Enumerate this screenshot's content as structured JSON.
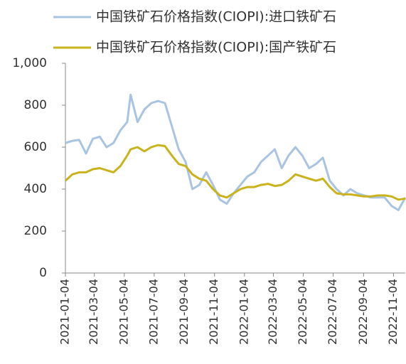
{
  "chart_data": {
    "type": "line",
    "x": [
      "2021-01-04",
      "2021-01-18",
      "2021-02-01",
      "2021-02-15",
      "2021-03-01",
      "2021-03-15",
      "2021-03-29",
      "2021-04-12",
      "2021-04-26",
      "2021-05-10",
      "2021-05-17",
      "2021-05-31",
      "2021-06-14",
      "2021-06-28",
      "2021-07-12",
      "2021-07-26",
      "2021-08-09",
      "2021-08-23",
      "2021-09-06",
      "2021-09-20",
      "2021-10-04",
      "2021-10-18",
      "2021-11-01",
      "2021-11-15",
      "2021-11-29",
      "2021-12-13",
      "2021-12-27",
      "2022-01-10",
      "2022-01-24",
      "2022-02-07",
      "2022-02-21",
      "2022-03-07",
      "2022-03-21",
      "2022-04-04",
      "2022-04-18",
      "2022-05-02",
      "2022-05-16",
      "2022-05-30",
      "2022-06-13",
      "2022-06-27",
      "2022-07-11",
      "2022-07-25",
      "2022-08-08",
      "2022-08-22",
      "2022-09-05",
      "2022-09-19",
      "2022-10-03",
      "2022-10-17",
      "2022-10-31",
      "2022-11-14",
      "2022-11-28"
    ],
    "series": [
      {
        "name": "中国铁矿石价格指数(CIOPI):进口铁矿石",
        "color": "#a9c4e2",
        "values": [
          620,
          630,
          635,
          570,
          640,
          650,
          600,
          620,
          680,
          720,
          850,
          720,
          780,
          810,
          820,
          810,
          700,
          590,
          530,
          400,
          420,
          480,
          420,
          350,
          330,
          380,
          420,
          460,
          480,
          530,
          560,
          590,
          500,
          560,
          600,
          560,
          500,
          520,
          550,
          440,
          400,
          370,
          400,
          380,
          370,
          360,
          360,
          360,
          320,
          300,
          360
        ]
      },
      {
        "name": "中国铁矿石价格指数(CIOPI):国产铁矿石",
        "color": "#c9b21c",
        "values": [
          440,
          470,
          480,
          480,
          495,
          500,
          490,
          480,
          510,
          560,
          590,
          600,
          580,
          600,
          610,
          605,
          560,
          520,
          510,
          470,
          450,
          440,
          400,
          370,
          360,
          380,
          400,
          410,
          410,
          420,
          425,
          415,
          420,
          440,
          470,
          460,
          450,
          440,
          450,
          410,
          380,
          375,
          375,
          370,
          365,
          365,
          370,
          370,
          365,
          350,
          355
        ]
      }
    ],
    "xlim": [
      "2021-01-04",
      "2022-11-28"
    ],
    "xticks": [
      "2021-01-04",
      "2021-03-04",
      "2021-05-04",
      "2021-07-04",
      "2021-09-04",
      "2021-11-04",
      "2022-01-04",
      "2022-03-04",
      "2022-05-04",
      "2022-07-04",
      "2022-09-04",
      "2022-11-04"
    ],
    "ylim": [
      0,
      1000
    ],
    "yticks": [
      0,
      200,
      400,
      600,
      800,
      {
        "value": 1000,
        "label": "1,000"
      }
    ],
    "grid": false
  }
}
